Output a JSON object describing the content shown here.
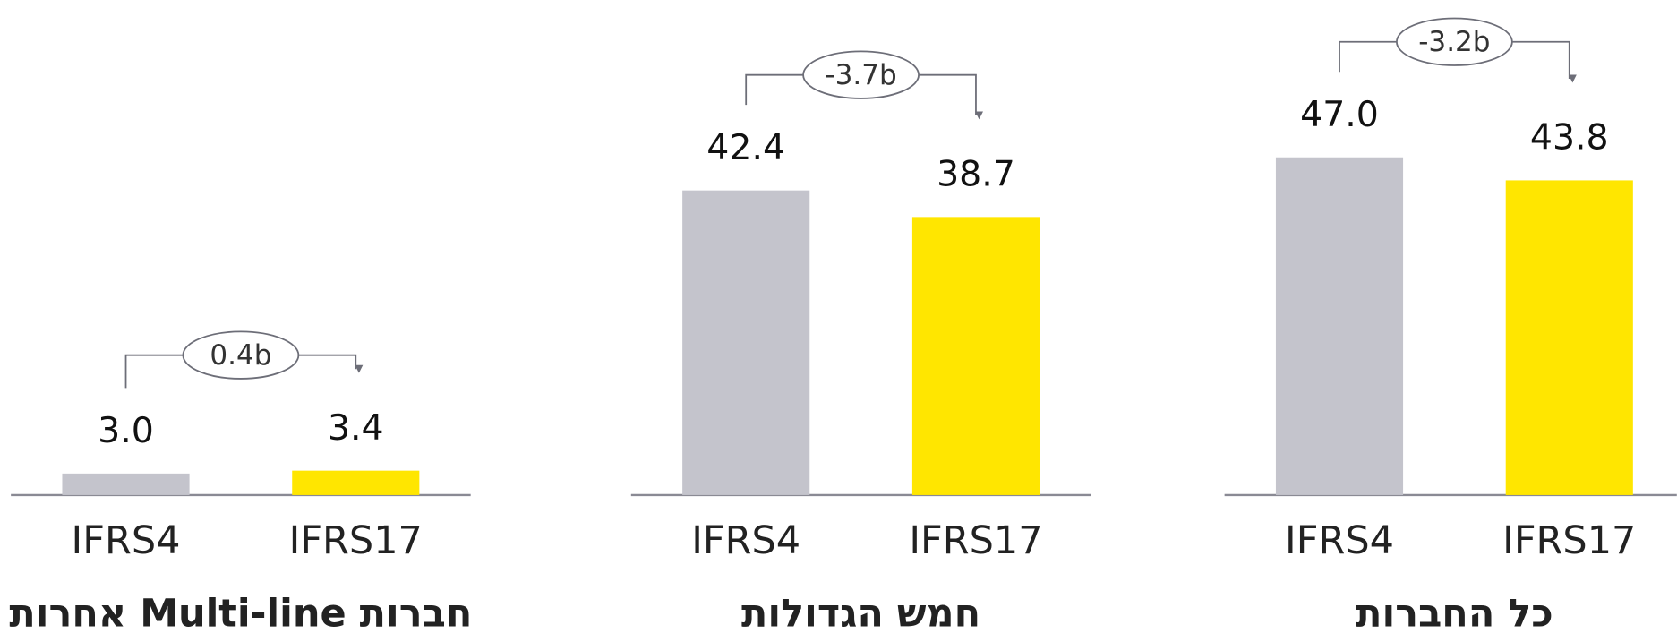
{
  "chart_data": [
    {
      "type": "bar",
      "title": "חברות Multi-line אחרות",
      "categories": [
        "IFRS4",
        "IFRS17"
      ],
      "values": [
        3.0,
        3.4
      ],
      "value_labels": [
        "3.0",
        "3.4"
      ],
      "colors": [
        "#c4c4cc",
        "#ffe600"
      ],
      "change_label": "0.4b"
    },
    {
      "type": "bar",
      "title": "חמש הגדולות",
      "categories": [
        "IFRS4",
        "IFRS17"
      ],
      "values": [
        42.4,
        38.7
      ],
      "value_labels": [
        "42.4",
        "38.7"
      ],
      "colors": [
        "#c4c4cc",
        "#ffe600"
      ],
      "change_label": "-3.7b"
    },
    {
      "type": "bar",
      "title": "כל החברות",
      "categories": [
        "IFRS4",
        "IFRS17"
      ],
      "values": [
        47.0,
        43.8
      ],
      "value_labels": [
        "47.0",
        "43.8"
      ],
      "colors": [
        "#c4c4cc",
        "#ffe600"
      ],
      "change_label": "-3.2b"
    }
  ]
}
